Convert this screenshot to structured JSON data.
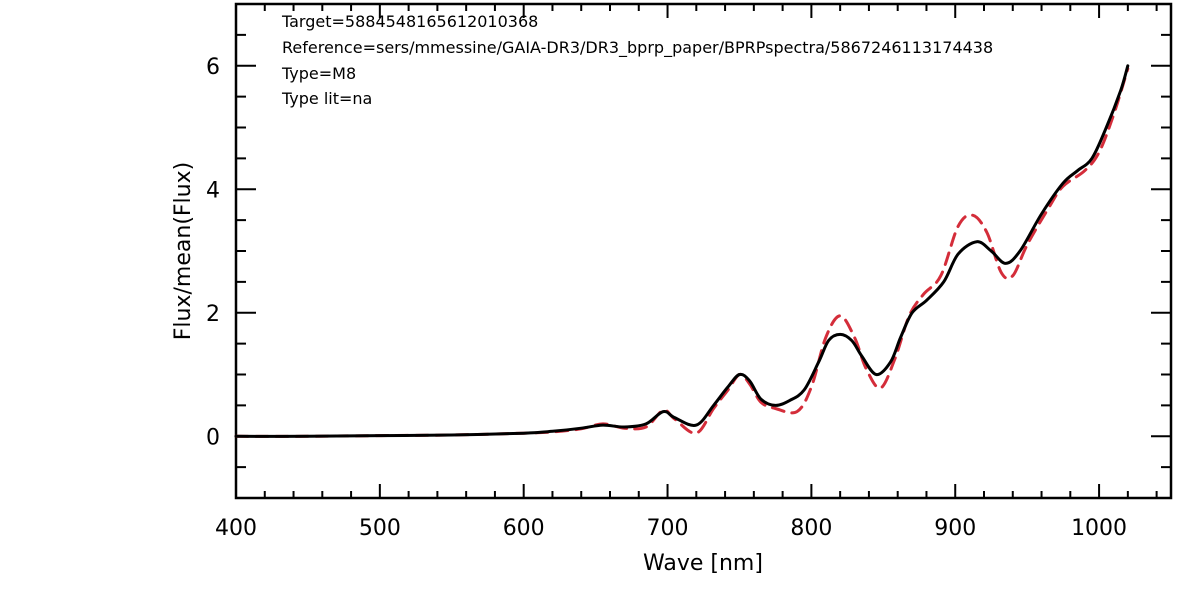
{
  "chart_data": {
    "type": "line",
    "title": "",
    "xlabel": "Wave [nm]",
    "ylabel": "Flux/mean(Flux)",
    "xlim": [
      400,
      1050
    ],
    "ylim": [
      -1,
      7
    ],
    "xticks": [
      400,
      500,
      600,
      700,
      800,
      900,
      1000
    ],
    "yticks": [
      0,
      2,
      4,
      6
    ],
    "grid": false,
    "annotations": [
      "Target=5884548165612010368",
      "Reference=sers/mmessine/GAIA-DR3/DR3_bprp_paper/BPRPspectra/5867246113174438",
      "Type=M8",
      "Type lit=na"
    ],
    "series": [
      {
        "style": "solid",
        "color": "#000000",
        "x": [
          400,
          450,
          500,
          550,
          600,
          620,
          640,
          655,
          670,
          685,
          697,
          705,
          720,
          732,
          742,
          750,
          757,
          765,
          775,
          785,
          795,
          805,
          812,
          820,
          828,
          835,
          845,
          855,
          862,
          870,
          880,
          892,
          902,
          915,
          925,
          935,
          945,
          960,
          975,
          985,
          995,
          1005,
          1015,
          1020
        ],
        "y": [
          0.0,
          0.0,
          0.01,
          0.02,
          0.05,
          0.08,
          0.13,
          0.18,
          0.15,
          0.2,
          0.4,
          0.3,
          0.18,
          0.5,
          0.8,
          1.0,
          0.9,
          0.6,
          0.5,
          0.58,
          0.75,
          1.2,
          1.55,
          1.65,
          1.55,
          1.3,
          1.0,
          1.2,
          1.6,
          2.0,
          2.2,
          2.5,
          2.95,
          3.15,
          3.0,
          2.8,
          3.0,
          3.6,
          4.1,
          4.3,
          4.5,
          5.0,
          5.6,
          6.0
        ]
      },
      {
        "style": "dashed",
        "color": "#d42d3a",
        "x": [
          400,
          450,
          500,
          550,
          600,
          620,
          640,
          655,
          670,
          685,
          697,
          705,
          720,
          732,
          742,
          750,
          757,
          765,
          775,
          790,
          800,
          810,
          820,
          830,
          838,
          848,
          858,
          868,
          878,
          890,
          902,
          912,
          922,
          932,
          940,
          950,
          965,
          975,
          990,
          1000,
          1010,
          1020
        ],
        "y": [
          0.0,
          0.0,
          0.01,
          0.02,
          0.05,
          0.07,
          0.12,
          0.2,
          0.13,
          0.15,
          0.42,
          0.28,
          0.05,
          0.45,
          0.75,
          1.0,
          0.85,
          0.55,
          0.45,
          0.4,
          0.8,
          1.6,
          1.95,
          1.6,
          1.1,
          0.78,
          1.25,
          1.95,
          2.3,
          2.6,
          3.4,
          3.58,
          3.3,
          2.65,
          2.6,
          3.1,
          3.7,
          4.05,
          4.3,
          4.6,
          5.2,
          5.95
        ]
      }
    ]
  }
}
